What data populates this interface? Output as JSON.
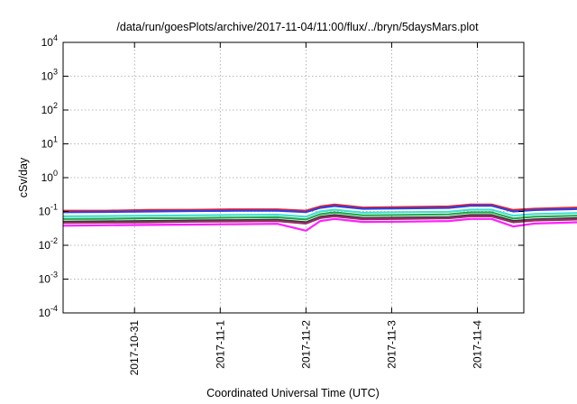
{
  "chart_data": {
    "type": "line",
    "title": "/data/run/goesPlots/archive/2017-11-04/11:00/flux/../bryn/5daysMars.plot",
    "xlabel": "Coordinated Universal Time (UTC)",
    "ylabel": "cSv/day",
    "yscale": "log",
    "ylim": [
      0.0001,
      10000
    ],
    "xlim": [
      "2017-10-30T04:00",
      "2017-11-04T13:00"
    ],
    "x_ticks": [
      "2017-10-31",
      "2017-11-1",
      "2017-11-2",
      "2017-11-3",
      "2017-11-4"
    ],
    "y_ticks": [
      {
        "base": "10",
        "exp": "-4",
        "value": 0.0001
      },
      {
        "base": "10",
        "exp": "-3",
        "value": 0.001
      },
      {
        "base": "10",
        "exp": "-2",
        "value": 0.01
      },
      {
        "base": "10",
        "exp": "-1",
        "value": 0.1
      },
      {
        "base": "10",
        "exp": "0",
        "value": 1
      },
      {
        "base": "10",
        "exp": "1",
        "value": 10
      },
      {
        "base": "10",
        "exp": "2",
        "value": 100
      },
      {
        "base": "10",
        "exp": "3",
        "value": 1000
      },
      {
        "base": "10",
        "exp": "4",
        "value": 10000
      }
    ],
    "grid": true,
    "legend": "none",
    "x_hours": [
      0,
      12,
      24,
      36,
      48,
      60,
      68,
      72,
      76,
      84,
      96,
      108,
      114,
      120,
      126,
      132,
      144,
      156,
      162,
      168,
      174,
      180,
      192,
      204,
      210,
      216,
      222,
      228,
      240,
      252,
      260
    ],
    "series": [
      {
        "color": "#e8202a",
        "values": [
          0.105,
          0.105,
          0.11,
          0.112,
          0.115,
          0.115,
          0.105,
          0.14,
          0.16,
          0.13,
          0.135,
          0.14,
          0.16,
          0.16,
          0.11,
          0.12,
          0.13,
          0.135,
          0.14,
          0.125,
          0.115,
          0.125,
          0.13,
          0.135,
          0.13,
          0.12,
          0.12,
          0.125,
          0.13,
          0.135,
          0.135
        ]
      },
      {
        "color": "#3040e0",
        "values": [
          0.095,
          0.097,
          0.1,
          0.103,
          0.105,
          0.106,
          0.096,
          0.128,
          0.145,
          0.12,
          0.124,
          0.128,
          0.148,
          0.148,
          0.1,
          0.11,
          0.118,
          0.124,
          0.128,
          0.114,
          0.106,
          0.115,
          0.12,
          0.124,
          0.12,
          0.11,
          0.11,
          0.115,
          0.12,
          0.124,
          0.124
        ]
      },
      {
        "color": "#40e0d0",
        "values": [
          0.072,
          0.073,
          0.075,
          0.077,
          0.079,
          0.08,
          0.07,
          0.1,
          0.113,
          0.092,
          0.095,
          0.098,
          0.113,
          0.113,
          0.075,
          0.084,
          0.09,
          0.095,
          0.098,
          0.087,
          0.08,
          0.088,
          0.091,
          0.095,
          0.091,
          0.084,
          0.084,
          0.088,
          0.091,
          0.095,
          0.095
        ]
      },
      {
        "color": "#1fa84a",
        "values": [
          0.06,
          0.061,
          0.063,
          0.064,
          0.066,
          0.067,
          0.058,
          0.083,
          0.094,
          0.077,
          0.079,
          0.082,
          0.094,
          0.094,
          0.062,
          0.07,
          0.075,
          0.079,
          0.082,
          0.073,
          0.067,
          0.073,
          0.076,
          0.079,
          0.076,
          0.07,
          0.07,
          0.073,
          0.076,
          0.079,
          0.079
        ]
      },
      {
        "color": "#333333",
        "values": [
          0.05,
          0.051,
          0.052,
          0.054,
          0.055,
          0.056,
          0.048,
          0.069,
          0.078,
          0.064,
          0.066,
          0.068,
          0.078,
          0.078,
          0.052,
          0.058,
          0.063,
          0.066,
          0.068,
          0.061,
          0.056,
          0.061,
          0.063,
          0.066,
          0.063,
          0.058,
          0.058,
          0.061,
          0.063,
          0.066,
          0.066
        ]
      },
      {
        "color": "#9b2d6a",
        "values": [
          0.046,
          0.047,
          0.048,
          0.05,
          0.051,
          0.052,
          0.044,
          0.064,
          0.072,
          0.059,
          0.061,
          0.063,
          0.072,
          0.072,
          0.048,
          0.054,
          0.058,
          0.061,
          0.063,
          0.056,
          0.052,
          0.056,
          0.058,
          0.061,
          0.058,
          0.054,
          0.054,
          0.056,
          0.058,
          0.061,
          0.061
        ]
      },
      {
        "color": "#ff20ff",
        "values": [
          0.038,
          0.039,
          0.04,
          0.041,
          0.042,
          0.043,
          0.027,
          0.052,
          0.06,
          0.049,
          0.05,
          0.052,
          0.06,
          0.06,
          0.036,
          0.044,
          0.048,
          0.05,
          0.052,
          0.046,
          0.037,
          0.046,
          0.048,
          0.05,
          0.048,
          0.037,
          0.044,
          0.046,
          0.048,
          0.05,
          0.05
        ]
      }
    ]
  }
}
